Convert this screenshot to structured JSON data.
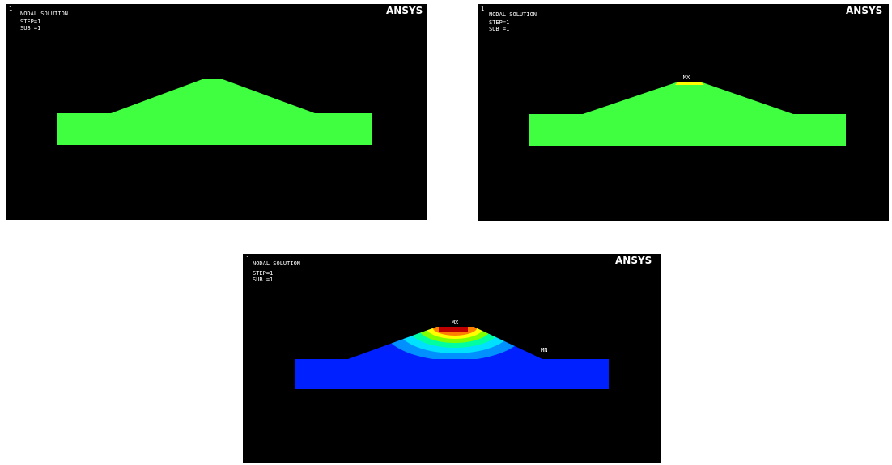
{
  "panels": [
    {
      "number": "1",
      "brand": "ANSYS",
      "lines": [
        "NODAL SOLUTION",
        "STEP=1",
        "SUB =1"
      ]
    },
    {
      "number": "1",
      "brand": "ANSYS",
      "lines": [
        "NODAL SOLUTION",
        "STEP=1",
        "SUB =1"
      ],
      "max_label": "MX"
    },
    {
      "number": "1",
      "brand": "ANSYS",
      "lines": [
        "NODAL SOLUTION",
        "STEP=1",
        "SUB =1"
      ],
      "max_label": "MX",
      "min_label": "MN"
    }
  ]
}
